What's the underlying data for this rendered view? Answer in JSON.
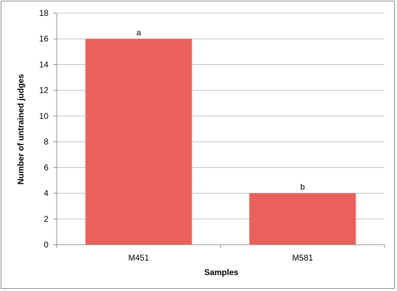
{
  "chart_data": {
    "type": "bar",
    "categories": [
      "M451",
      "M581"
    ],
    "values": [
      16,
      4
    ],
    "data_labels": [
      "a",
      "b"
    ],
    "title": "",
    "xlabel": "Samples",
    "ylabel": "Number of untrained judges",
    "ylim": [
      0,
      18
    ],
    "y_ticks": [
      0,
      2,
      4,
      6,
      8,
      10,
      12,
      14,
      16,
      18
    ],
    "grid": true,
    "bar_color": "#eb605a",
    "grid_color": "#c0c0c0"
  }
}
